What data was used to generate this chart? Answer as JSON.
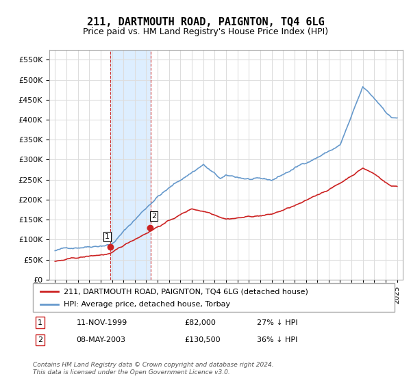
{
  "title": "211, DARTMOUTH ROAD, PAIGNTON, TQ4 6LG",
  "subtitle": "Price paid vs. HM Land Registry's House Price Index (HPI)",
  "legend_line1": "211, DARTMOUTH ROAD, PAIGNTON, TQ4 6LG (detached house)",
  "legend_line2": "HPI: Average price, detached house, Torbay",
  "sale1_label": "1",
  "sale1_date": "11-NOV-1999",
  "sale1_price": "£82,000",
  "sale1_hpi": "27% ↓ HPI",
  "sale2_label": "2",
  "sale2_date": "08-MAY-2003",
  "sale2_price": "£130,500",
  "sale2_hpi": "36% ↓ HPI",
  "footer": "Contains HM Land Registry data © Crown copyright and database right 2024.\nThis data is licensed under the Open Government Licence v3.0.",
  "ylim": [
    0,
    575000
  ],
  "yticks": [
    0,
    50000,
    100000,
    150000,
    200000,
    250000,
    300000,
    350000,
    400000,
    450000,
    500000,
    550000
  ],
  "hpi_color": "#6699cc",
  "price_color": "#cc2222",
  "highlight_color": "#ddeeff",
  "highlight_border": "#cc3333",
  "background_color": "#ffffff",
  "grid_color": "#dddddd"
}
